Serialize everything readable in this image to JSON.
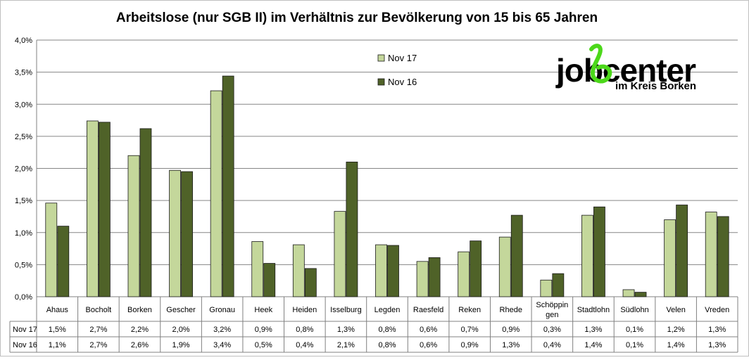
{
  "chart_data": {
    "type": "bar",
    "title": "Arbeitslose (nur SGB II) im Verhältnis zur Bevölkerung von 15 bis 65 Jahren",
    "categories": [
      "Ahaus",
      "Bocholt",
      "Borken",
      "Gescher",
      "Gronau",
      "Heek",
      "Heiden",
      "Isselburg",
      "Legden",
      "Raesfeld",
      "Reken",
      "Rhede",
      "Schöppingen",
      "Stadtlohn",
      "Südlohn",
      "Velen",
      "Vreden"
    ],
    "category_display": [
      [
        "Ahaus"
      ],
      [
        "Bocholt"
      ],
      [
        "Borken"
      ],
      [
        "Gescher"
      ],
      [
        "Gronau"
      ],
      [
        "Heek"
      ],
      [
        "Heiden"
      ],
      [
        "Isselburg"
      ],
      [
        "Legden"
      ],
      [
        "Raesfeld"
      ],
      [
        "Reken"
      ],
      [
        "Rhede"
      ],
      [
        "Schöppin",
        "gen"
      ],
      [
        "Stadtlohn"
      ],
      [
        "Südlohn"
      ],
      [
        "Velen"
      ],
      [
        "Vreden"
      ]
    ],
    "series": [
      {
        "name": "Nov 17",
        "color": "#c4d79b",
        "values": [
          1.46,
          2.74,
          2.2,
          1.97,
          3.21,
          0.86,
          0.81,
          1.33,
          0.81,
          0.55,
          0.7,
          0.93,
          0.26,
          1.27,
          0.11,
          1.2,
          1.32
        ],
        "labels": [
          "1,5%",
          "2,7%",
          "2,2%",
          "2,0%",
          "3,2%",
          "0,9%",
          "0,8%",
          "1,3%",
          "0,8%",
          "0,6%",
          "0,7%",
          "0,9%",
          "0,3%",
          "1,3%",
          "0,1%",
          "1,2%",
          "1,3%"
        ]
      },
      {
        "name": "Nov 16",
        "color": "#4f6228",
        "values": [
          1.1,
          2.72,
          2.62,
          1.95,
          3.44,
          0.52,
          0.44,
          2.1,
          0.8,
          0.61,
          0.87,
          1.27,
          0.36,
          1.4,
          0.07,
          1.43,
          1.25
        ],
        "labels": [
          "1,1%",
          "2,7%",
          "2,6%",
          "1,9%",
          "3,4%",
          "0,5%",
          "0,4%",
          "2,1%",
          "0,8%",
          "0,6%",
          "0,9%",
          "1,3%",
          "0,4%",
          "1,4%",
          "0,1%",
          "1,4%",
          "1,3%"
        ]
      }
    ],
    "ylim": [
      0,
      4
    ],
    "ytick_values": [
      0,
      0.5,
      1.0,
      1.5,
      2.0,
      2.5,
      3.0,
      3.5,
      4.0
    ],
    "ytick_labels": [
      "0,0%",
      "0,5%",
      "1,0%",
      "1,5%",
      "2,0%",
      "2,5%",
      "3,0%",
      "3,5%",
      "4,0%"
    ],
    "grid": true,
    "legend_position": "top-center",
    "data_table": true
  },
  "logo": {
    "text_main": "jobcenter",
    "text_sub": "im Kreis Borken",
    "accent_color": "#4cd81a"
  }
}
